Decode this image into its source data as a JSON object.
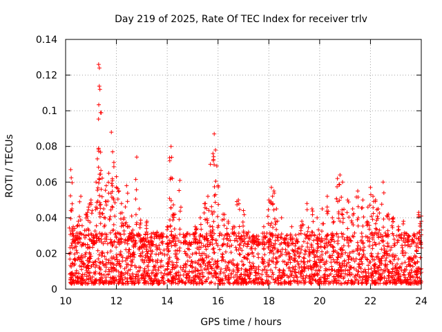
{
  "chart_data": {
    "type": "scatter",
    "title": "Day 219 of 2025, Rate Of TEC Index for receiver trlv",
    "xlabel": "GPS time / hours",
    "ylabel": "ROTI / TECUs",
    "xlim": [
      10,
      24
    ],
    "ylim": [
      0,
      0.14
    ],
    "xticks": [
      10,
      12,
      14,
      16,
      18,
      20,
      22,
      24
    ],
    "xtick_labels": [
      "10",
      "12",
      "14",
      "16",
      "18",
      "20",
      "22",
      "24"
    ],
    "yticks": [
      0,
      0.02,
      0.04,
      0.06,
      0.08,
      0.1,
      0.12,
      0.14
    ],
    "ytick_labels": [
      "0",
      "0.02",
      "0.04",
      "0.06",
      "0.08",
      "0.1",
      "0.12",
      "0.14"
    ],
    "grid": true,
    "marker": "plus",
    "color": "#ff0000",
    "series": [
      {
        "name": "ROTI",
        "x": [
          10.2,
          10.25,
          10.3,
          10.4,
          10.5,
          10.6,
          10.7,
          10.8,
          10.9,
          11.0,
          11.1,
          11.2,
          11.25,
          11.3,
          11.33,
          11.35,
          11.38,
          11.4,
          11.5,
          11.6,
          11.7,
          11.8,
          11.85,
          11.9,
          12.0,
          12.1,
          12.2,
          12.3,
          12.4,
          12.5,
          12.6,
          12.7,
          12.8,
          12.9,
          13.0,
          13.2,
          13.4,
          13.6,
          13.8,
          14.0,
          14.1,
          14.15,
          14.2,
          14.3,
          14.5,
          14.7,
          14.9,
          15.1,
          15.3,
          15.5,
          15.6,
          15.7,
          15.8,
          15.85,
          15.9,
          16.0,
          16.2,
          16.4,
          16.6,
          16.8,
          17.0,
          17.2,
          17.4,
          17.6,
          17.8,
          18.0,
          18.1,
          18.2,
          18.3,
          18.5,
          18.7,
          18.9,
          19.1,
          19.3,
          19.5,
          19.7,
          19.9,
          20.1,
          20.3,
          20.5,
          20.7,
          20.8,
          20.9,
          21.1,
          21.3,
          21.5,
          21.7,
          21.9,
          22.0,
          22.1,
          22.2,
          22.3,
          22.5,
          22.7,
          22.9,
          23.1,
          23.3,
          23.5,
          23.7,
          23.9,
          24.0
        ],
        "y": [
          0.067,
          0.045,
          0.035,
          0.03,
          0.038,
          0.052,
          0.025,
          0.042,
          0.046,
          0.05,
          0.03,
          0.06,
          0.073,
          0.126,
          0.124,
          0.112,
          0.099,
          0.056,
          0.045,
          0.058,
          0.065,
          0.088,
          0.077,
          0.071,
          0.063,
          0.055,
          0.048,
          0.04,
          0.058,
          0.035,
          0.041,
          0.03,
          0.074,
          0.045,
          0.028,
          0.038,
          0.025,
          0.032,
          0.03,
          0.035,
          0.072,
          0.08,
          0.062,
          0.042,
          0.061,
          0.03,
          0.025,
          0.035,
          0.04,
          0.048,
          0.052,
          0.07,
          0.076,
          0.087,
          0.078,
          0.058,
          0.042,
          0.038,
          0.035,
          0.05,
          0.044,
          0.032,
          0.03,
          0.026,
          0.035,
          0.05,
          0.057,
          0.055,
          0.045,
          0.04,
          0.03,
          0.035,
          0.028,
          0.038,
          0.048,
          0.045,
          0.04,
          0.045,
          0.052,
          0.04,
          0.062,
          0.064,
          0.06,
          0.05,
          0.045,
          0.055,
          0.05,
          0.046,
          0.057,
          0.052,
          0.05,
          0.045,
          0.06,
          0.042,
          0.04,
          0.035,
          0.038,
          0.03,
          0.03,
          0.043,
          0.041
        ],
        "baseline_min": 0.003,
        "baseline_max": 0.025
      }
    ]
  }
}
